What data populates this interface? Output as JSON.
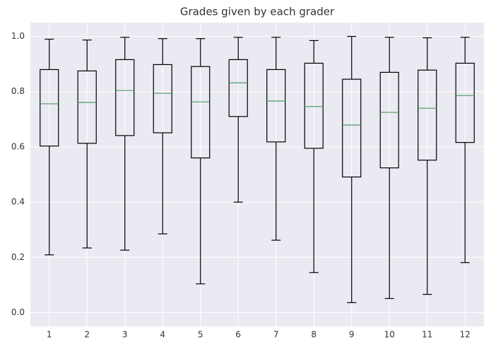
{
  "chart_data": {
    "type": "box",
    "title": "Grades given by each grader",
    "categories": [
      "1",
      "2",
      "3",
      "4",
      "5",
      "6",
      "7",
      "8",
      "9",
      "10",
      "11",
      "12"
    ],
    "low": [
      0.209,
      0.234,
      0.226,
      0.285,
      0.104,
      0.4,
      0.262,
      0.145,
      0.036,
      0.051,
      0.066,
      0.181
    ],
    "q1": [
      0.603,
      0.613,
      0.641,
      0.651,
      0.56,
      0.71,
      0.618,
      0.595,
      0.491,
      0.524,
      0.552,
      0.616
    ],
    "median": [
      0.756,
      0.761,
      0.804,
      0.794,
      0.763,
      0.832,
      0.766,
      0.746,
      0.679,
      0.725,
      0.74,
      0.786
    ],
    "q3": [
      0.88,
      0.875,
      0.916,
      0.898,
      0.891,
      0.916,
      0.88,
      0.903,
      0.845,
      0.87,
      0.878,
      0.903
    ],
    "high": [
      0.99,
      0.987,
      0.997,
      0.992,
      0.992,
      0.997,
      0.997,
      0.985,
      1.0,
      0.997,
      0.995,
      0.997
    ],
    "box_color": "#000000",
    "median_color": "#4c9a5b",
    "background": "#eaeaf2",
    "ylim": [
      -0.05,
      1.05
    ],
    "yticks": [
      {
        "value": 0,
        "label": "0.0"
      },
      0.2,
      0.4,
      0.6,
      0.8,
      {
        "value": 1,
        "label": "1.0"
      }
    ],
    "grid": true
  }
}
